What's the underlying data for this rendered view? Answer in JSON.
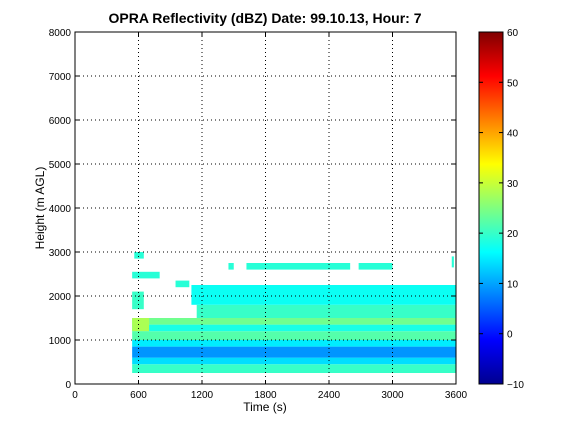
{
  "chart_data": {
    "type": "heatmap",
    "title": "OPRA Reflectivity (dBZ)  Date: 99.10.13, Hour: 7",
    "xlabel": "Time (s)",
    "ylabel": "Height (m AGL)",
    "xlim": [
      0,
      3600
    ],
    "ylim": [
      0,
      8000
    ],
    "xticks": [
      0,
      600,
      1200,
      1800,
      2400,
      3000,
      3600
    ],
    "yticks": [
      0,
      1000,
      2000,
      3000,
      4000,
      5000,
      6000,
      7000,
      8000
    ],
    "grid": true,
    "colorbar": {
      "min": -10,
      "max": 60,
      "ticks": [
        -10,
        0,
        10,
        20,
        30,
        40,
        50,
        60
      ],
      "colormap": "jet"
    },
    "layers": [
      {
        "t0": 540,
        "t1": 3600,
        "z0": 250,
        "z1": 450,
        "dbz": 20
      },
      {
        "t0": 540,
        "t1": 3600,
        "z0": 450,
        "z1": 600,
        "dbz": 14
      },
      {
        "t0": 540,
        "t1": 3600,
        "z0": 600,
        "z1": 850,
        "dbz": 9
      },
      {
        "t0": 540,
        "t1": 3600,
        "z0": 850,
        "z1": 1000,
        "dbz": 15
      },
      {
        "t0": 540,
        "t1": 3600,
        "z0": 1000,
        "z1": 1200,
        "dbz": 22
      },
      {
        "t0": 540,
        "t1": 3600,
        "z0": 1200,
        "z1": 1350,
        "dbz": 18
      },
      {
        "t0": 540,
        "t1": 3600,
        "z0": 1350,
        "z1": 1500,
        "dbz": 24
      },
      {
        "t0": 540,
        "t1": 700,
        "z0": 1200,
        "z1": 1500,
        "dbz": 28
      },
      {
        "t0": 1150,
        "t1": 3600,
        "z0": 1500,
        "z1": 1800,
        "dbz": 20
      },
      {
        "t0": 1100,
        "t1": 3600,
        "z0": 1800,
        "z1": 2250,
        "dbz": 17
      },
      {
        "t0": 540,
        "t1": 650,
        "z0": 1700,
        "z1": 2100,
        "dbz": 20
      },
      {
        "t0": 950,
        "t1": 1080,
        "z0": 2200,
        "z1": 2350,
        "dbz": 19
      },
      {
        "t0": 540,
        "t1": 800,
        "z0": 2400,
        "z1": 2550,
        "dbz": 19
      },
      {
        "t0": 560,
        "t1": 650,
        "z0": 2850,
        "z1": 3000,
        "dbz": 19
      },
      {
        "t0": 1620,
        "t1": 2600,
        "z0": 2600,
        "z1": 2750,
        "dbz": 19
      },
      {
        "t0": 2680,
        "t1": 3000,
        "z0": 2600,
        "z1": 2750,
        "dbz": 19
      },
      {
        "t0": 1450,
        "t1": 1500,
        "z0": 2600,
        "z1": 2750,
        "dbz": 19
      },
      {
        "t0": 3560,
        "t1": 3580,
        "z0": 2650,
        "z1": 2900,
        "dbz": 19
      }
    ]
  }
}
